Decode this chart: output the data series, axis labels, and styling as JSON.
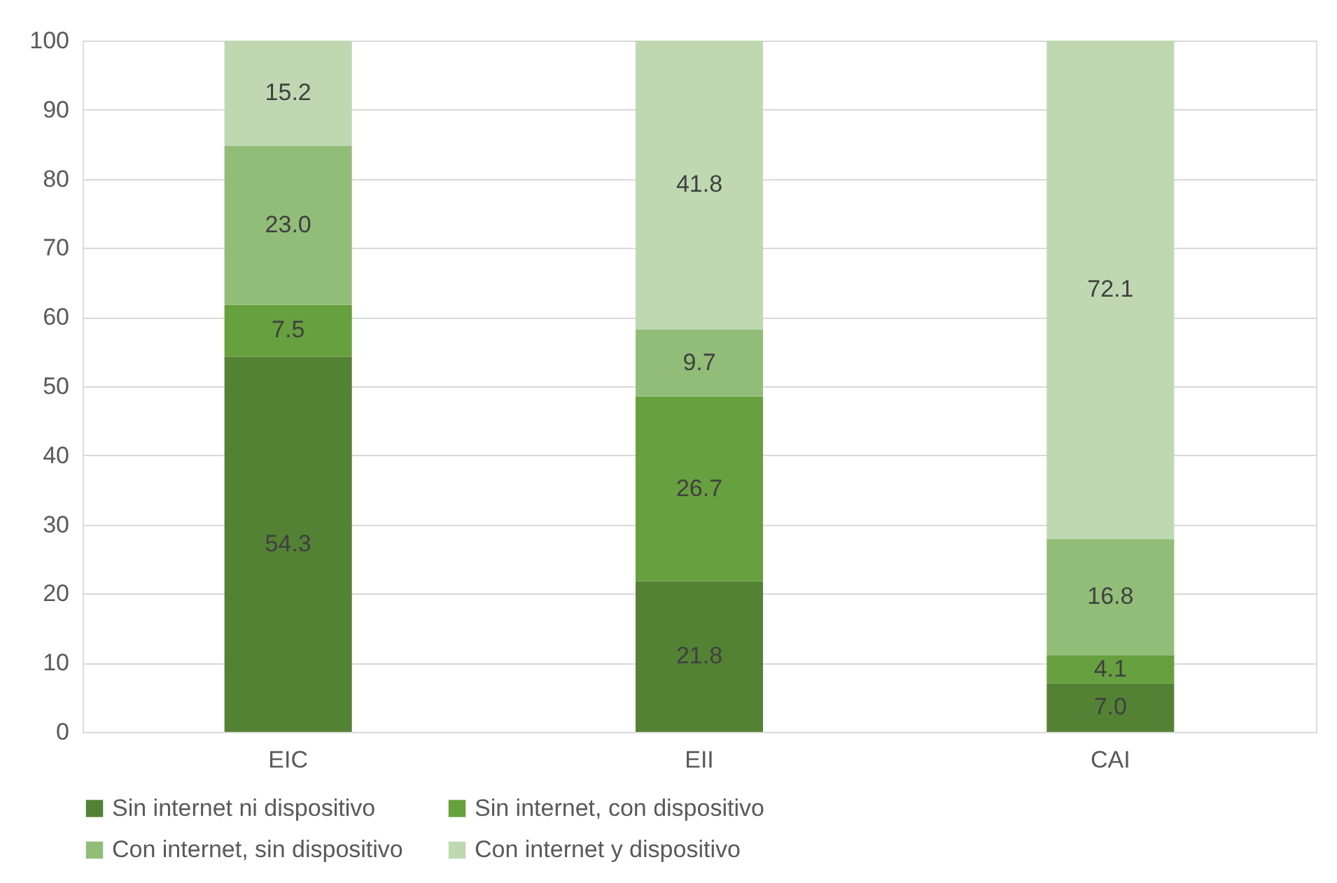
{
  "chart_data": {
    "type": "bar",
    "stacked": true,
    "categories": [
      "EIC",
      "EII",
      "CAI"
    ],
    "series": [
      {
        "name": "Sin internet ni dispositivo",
        "color": "#548235",
        "values": [
          54.3,
          21.8,
          7.0
        ],
        "value_labels": [
          "54.3",
          "21.8",
          "7.0"
        ]
      },
      {
        "name": "Sin internet, con dispositivo",
        "color": "#67a03e",
        "values": [
          7.5,
          26.7,
          4.1
        ],
        "value_labels": [
          "7.5",
          "26.7",
          "4.1"
        ]
      },
      {
        "name": "Con internet, sin dispositivo",
        "color": "#92bd78",
        "values": [
          23.0,
          9.7,
          16.8
        ],
        "value_labels": [
          "23.0",
          "9.7",
          "16.8"
        ]
      },
      {
        "name": "Con internet y dispositivo",
        "color": "#bfd8b2",
        "values": [
          15.2,
          41.8,
          72.1
        ],
        "value_labels": [
          "15.2",
          "41.8",
          "72.1"
        ]
      }
    ],
    "ylim": [
      0,
      100
    ],
    "yticks": [
      0,
      10,
      20,
      30,
      40,
      50,
      60,
      70,
      80,
      90,
      100
    ],
    "grid": "y",
    "legend": "bottom"
  }
}
